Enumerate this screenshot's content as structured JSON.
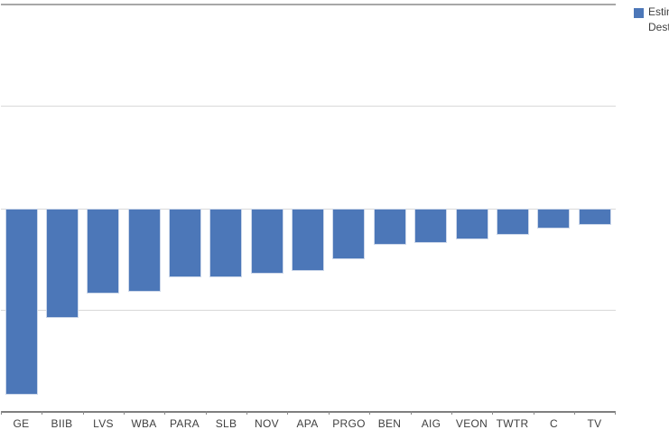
{
  "chart_data": {
    "type": "bar",
    "title": "",
    "categories": [
      "GE",
      "BIIB",
      "LVS",
      "WBA",
      "PARA",
      "SLB",
      "NOV",
      "APA",
      "PRGO",
      "BEN",
      "AIG",
      "VEON",
      "TWTR",
      "C",
      "TV"
    ],
    "values": [
      -9.2,
      -5.4,
      -4.2,
      -4.1,
      -3.4,
      -3.4,
      -3.2,
      -3.1,
      -2.5,
      -1.8,
      -1.7,
      -1.5,
      -1.3,
      -1.0,
      -0.8
    ],
    "xlabel": "",
    "ylabel": "",
    "ylim": [
      -10,
      10
    ],
    "gridline_step": 5,
    "grid": true,
    "y_axis_labels_visible": false,
    "legend_position": "top-right",
    "bar_color": "#4C77B8"
  },
  "legend": {
    "marker_color": "#4C77B8",
    "label_line1": "Estim",
    "label_line2": "Dest"
  },
  "colors": {
    "bar": "#4C77B8",
    "bar_border": "#cdd8ea",
    "gridline": "#d9d9d9",
    "top_border": "#a8a8a8",
    "axis_line": "#7f7f7f",
    "label_text": "#3f3f3f",
    "background": "#ffffff"
  }
}
